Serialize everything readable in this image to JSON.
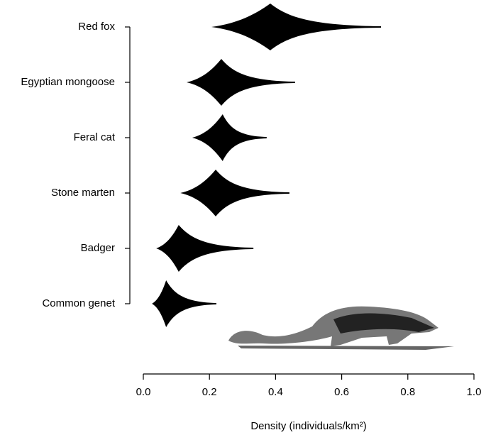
{
  "chart_data": {
    "type": "violin",
    "violins": [
      {
        "name": "Red fox",
        "min": 0.206,
        "mode": 0.384,
        "max": 0.719
      },
      {
        "name": "Egyptian mongoose",
        "min": 0.131,
        "mode": 0.236,
        "max": 0.459
      },
      {
        "name": "Feral cat",
        "min": 0.148,
        "mode": 0.24,
        "max": 0.373
      },
      {
        "name": "Stone marten",
        "min": 0.112,
        "mode": 0.219,
        "max": 0.442
      },
      {
        "name": "Badger",
        "min": 0.039,
        "mode": 0.107,
        "max": 0.333
      },
      {
        "name": "Common genet",
        "min": 0.026,
        "mode": 0.069,
        "max": 0.221
      }
    ],
    "color": "#000000",
    "x_label": "Density (individuals/km²)",
    "xlim": [
      0,
      1
    ],
    "xticks": [
      {
        "value": 0,
        "label": "0.0"
      },
      0.2,
      0.4,
      0.6,
      0.8,
      {
        "value": 1,
        "label": "1.0"
      }
    ]
  }
}
